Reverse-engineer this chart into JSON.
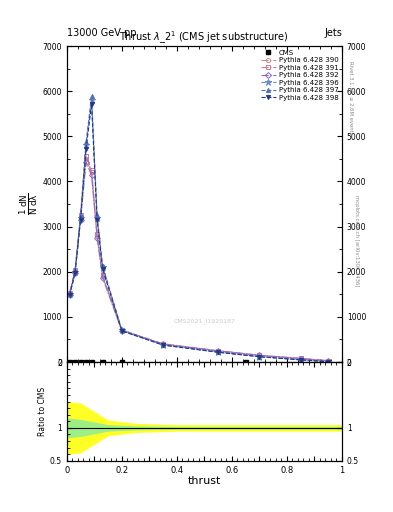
{
  "header_left": "13000 GeV pp",
  "header_right": "Jets",
  "plot_title": "Thrust $\\lambda\\_2^1$ (CMS jet substructure)",
  "xlabel": "thrust",
  "right_label1": "Rivet 3.1.10, ≥ 2.6M events",
  "right_label2": "mcplots.cern.ch [arXiv:1306.3436]",
  "watermark": "CMS2021_I1920187",
  "thrust_x": [
    0.01,
    0.03,
    0.05,
    0.07,
    0.09,
    0.11,
    0.13,
    0.2,
    0.35,
    0.55,
    0.7,
    0.85,
    0.95
  ],
  "y_pink": [
    1500,
    2000,
    3200,
    4500,
    4200,
    2800,
    1900,
    700,
    400,
    250,
    150,
    80,
    30
  ],
  "y_blue": [
    1500,
    2000,
    3200,
    4800,
    5800,
    3200,
    2100,
    700,
    380,
    220,
    120,
    50,
    10
  ],
  "cms_x": [
    0.01,
    0.03,
    0.05,
    0.07,
    0.09,
    0.13,
    0.2,
    0.65
  ],
  "cms_y": [
    0,
    0,
    0,
    0,
    0,
    0,
    0,
    0
  ],
  "ylim": [
    0,
    7000
  ],
  "yticks": [
    0,
    1000,
    2000,
    3000,
    4000,
    5000,
    6000,
    7000
  ],
  "ratio_ylim": [
    0.5,
    2.0
  ],
  "legend_labels": [
    "CMS",
    "Pythia 6.428 390",
    "Pythia 6.428 391",
    "Pythia 6.428 392",
    "Pythia 6.428 396",
    "Pythia 6.428 397",
    "Pythia 6.428 398"
  ],
  "line_colors": [
    "#d08888",
    "#c878a0",
    "#9068c0",
    "#6888c8",
    "#5070b8",
    "#203888"
  ],
  "line_styles": [
    "-.",
    "-.",
    "-.",
    "--",
    "--",
    "--"
  ],
  "line_markers": [
    "o",
    "s",
    "D",
    "*",
    "^",
    "v"
  ],
  "ratio_x": [
    0.0,
    0.05,
    0.1,
    0.15,
    0.25,
    0.4,
    0.6,
    0.8,
    1.0
  ],
  "yellow_upper": [
    1.4,
    1.38,
    1.25,
    1.12,
    1.07,
    1.05,
    1.05,
    1.05,
    1.05
  ],
  "yellow_lower": [
    0.6,
    0.62,
    0.75,
    0.88,
    0.93,
    0.95,
    0.95,
    0.95,
    0.95
  ],
  "green_upper": [
    1.15,
    1.13,
    1.09,
    1.05,
    1.03,
    1.02,
    1.02,
    1.02,
    1.02
  ],
  "green_lower": [
    0.85,
    0.87,
    0.91,
    0.95,
    0.97,
    0.98,
    0.98,
    0.98,
    0.98
  ]
}
